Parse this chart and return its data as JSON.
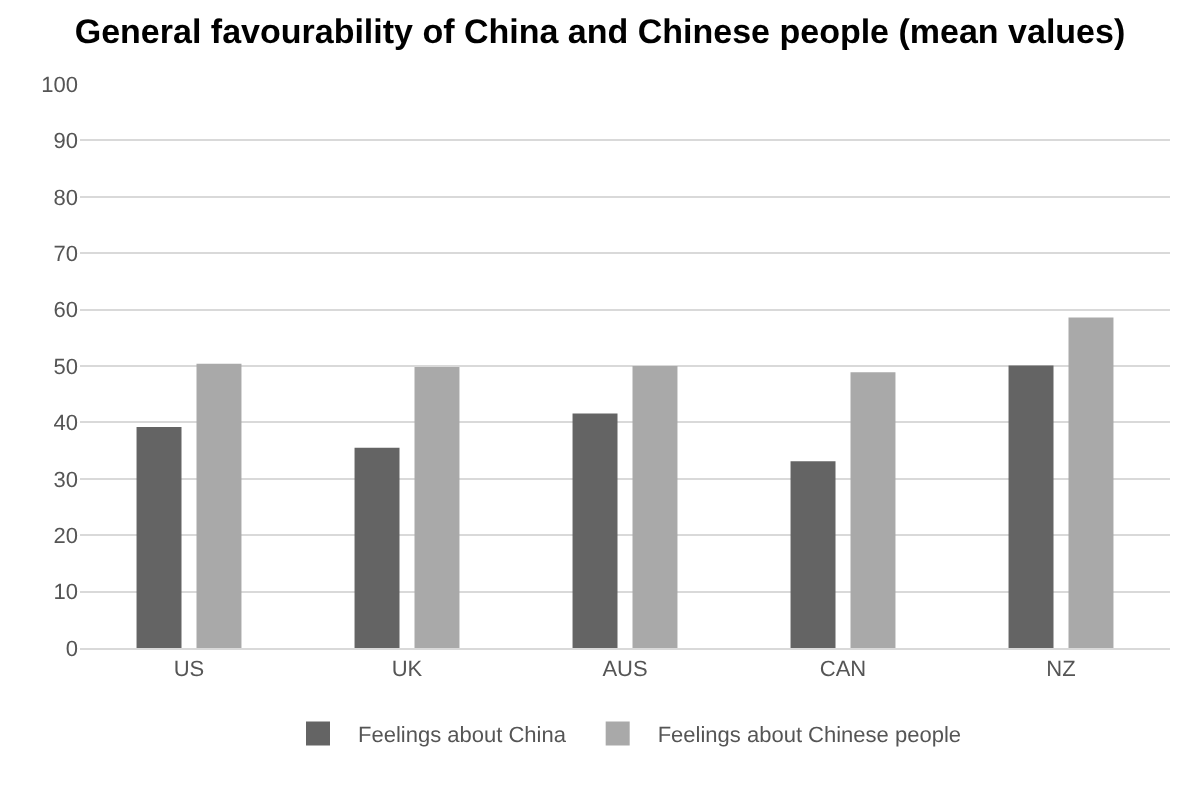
{
  "chart_data": {
    "type": "bar",
    "title": "General favourability of China and Chinese people (mean values)",
    "categories": [
      "US",
      "UK",
      "AUS",
      "CAN",
      "NZ"
    ],
    "series": [
      {
        "name": "Feelings about China",
        "color": "#646464",
        "values": [
          39.2,
          35.5,
          41.6,
          33.1,
          50.1
        ]
      },
      {
        "name": "Feelings about Chinese people",
        "color": "#a9a9a9",
        "values": [
          50.4,
          49.8,
          50.0,
          48.9,
          58.6
        ]
      }
    ],
    "ylim": [
      0,
      100
    ],
    "yticks": [
      0,
      10,
      20,
      30,
      40,
      50,
      60,
      70,
      80,
      90,
      100
    ],
    "grid": "y",
    "legend": "bottom"
  }
}
